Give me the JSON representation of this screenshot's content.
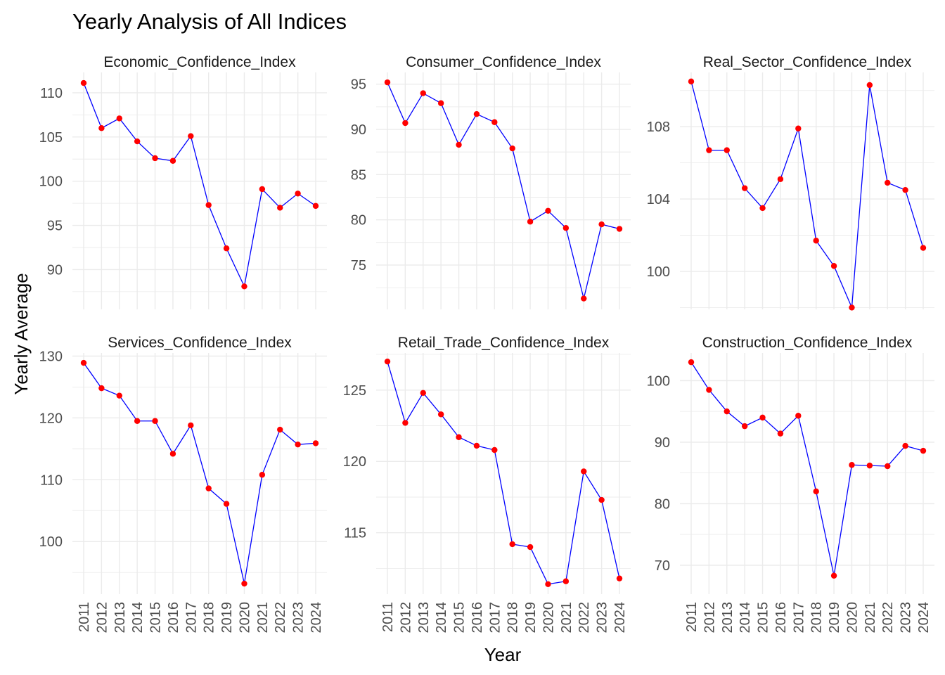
{
  "chart_data": {
    "type": "line",
    "title": "Yearly Analysis of All Indices",
    "xlabel": "Year",
    "ylabel": "Yearly Average",
    "grid": true,
    "legend": "none",
    "colors": {
      "line": "#0000FF",
      "point": "#FF0000",
      "grid": "#EBEBEB"
    },
    "x": [
      "2011",
      "2012",
      "2013",
      "2014",
      "2015",
      "2016",
      "2017",
      "2018",
      "2019",
      "2020",
      "2021",
      "2022",
      "2023",
      "2024"
    ],
    "panels": [
      {
        "name": "Economic_Confidence_Index",
        "values": [
          111.1,
          106.0,
          107.1,
          104.5,
          102.6,
          102.3,
          105.1,
          97.3,
          92.4,
          88.1,
          99.1,
          97.0,
          98.6,
          97.2
        ],
        "ylim": [
          85.5,
          112.3
        ],
        "yticks": [
          90,
          95,
          100,
          105,
          110
        ]
      },
      {
        "name": "Consumer_Confidence_Index",
        "values": [
          95.2,
          90.7,
          94.0,
          92.9,
          88.3,
          91.7,
          90.8,
          87.9,
          79.8,
          81.0,
          79.1,
          71.3,
          79.5,
          79.0
        ],
        "ylim": [
          70.1,
          96.3
        ],
        "yticks": [
          75,
          80,
          85,
          90,
          95
        ]
      },
      {
        "name": "Real_Sector_Confidence_Index",
        "values": [
          110.5,
          106.7,
          106.7,
          104.6,
          103.5,
          105.1,
          107.9,
          101.7,
          100.3,
          98.0,
          110.3,
          104.9,
          104.5,
          101.3
        ],
        "ylim": [
          97.9,
          111.0
        ],
        "yticks": [
          100,
          104,
          108
        ]
      },
      {
        "name": "Services_Confidence_Index",
        "values": [
          128.9,
          124.8,
          123.6,
          119.5,
          119.5,
          114.2,
          118.8,
          108.6,
          106.1,
          93.2,
          110.8,
          118.1,
          115.7,
          115.9
        ],
        "ylim": [
          91.5,
          130.5
        ],
        "yticks": [
          100,
          110,
          120,
          130
        ]
      },
      {
        "name": "Retail_Trade_Confidence_Index",
        "values": [
          127.0,
          122.7,
          124.8,
          123.3,
          121.7,
          121.1,
          120.8,
          114.2,
          114.0,
          111.4,
          111.6,
          119.3,
          117.3,
          111.8
        ],
        "ylim": [
          110.7,
          127.6
        ],
        "yticks": [
          115,
          120,
          125
        ]
      },
      {
        "name": "Construction_Confidence_Index",
        "values": [
          103.0,
          98.5,
          95.0,
          92.6,
          94.0,
          91.4,
          94.3,
          82.0,
          68.3,
          86.3,
          86.2,
          86.1,
          89.4,
          88.6
        ],
        "ylim": [
          65.3,
          104.5
        ],
        "yticks": [
          70,
          80,
          90,
          100
        ]
      }
    ]
  }
}
